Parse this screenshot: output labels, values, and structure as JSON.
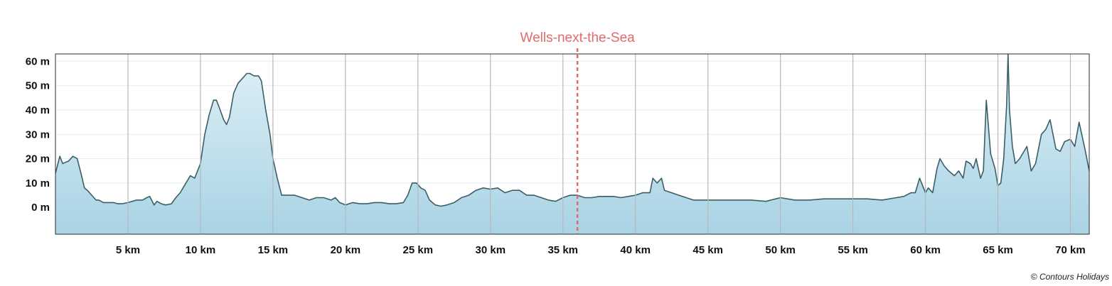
{
  "chart_data": {
    "type": "area",
    "title": "",
    "xlabel": "",
    "ylabel": "",
    "xlim": [
      0,
      71.3
    ],
    "ylim": [
      -11,
      63
    ],
    "x_unit": "km",
    "y_unit": "m",
    "xticks": [
      5,
      10,
      15,
      20,
      25,
      30,
      35,
      40,
      45,
      50,
      55,
      60,
      65,
      70
    ],
    "xtick_labels": [
      "5 km",
      "10 km",
      "15 km",
      "20 km",
      "25 km",
      "30 km",
      "35 km",
      "40 km",
      "45 km",
      "50 km",
      "55 km",
      "60 km",
      "65 km",
      "70 km"
    ],
    "yticks": [
      0,
      10,
      20,
      30,
      40,
      50,
      60
    ],
    "ytick_labels": [
      "0 m",
      "10 m",
      "20 m",
      "30 m",
      "40 m",
      "50 m",
      "60 m"
    ],
    "grid": true,
    "legend": "none",
    "marker": {
      "x": 36.0,
      "label": "Wells-next-the-Sea",
      "color": "#e06b6b"
    },
    "colors": {
      "line": "#3b5f66",
      "fill_top": "#dff0f7",
      "fill_bottom": "#a9d3e4",
      "grid_v": "#b8b8b8",
      "grid_h": "#e3eef4",
      "frame": "#2b2b2b"
    },
    "series": [
      {
        "x": [
          0,
          0.3,
          0.5,
          0.7,
          0.9,
          1.2,
          1.5,
          1.8,
          2.0,
          2.2,
          2.5,
          2.8,
          3.0,
          3.3,
          3.6,
          4.0,
          4.3,
          4.6,
          5.0,
          5.3,
          5.6,
          6.0,
          6.3,
          6.5,
          6.8,
          7.0,
          7.3,
          7.6,
          8.0,
          8.3,
          8.6,
          9.0,
          9.3,
          9.6,
          10.0,
          10.3,
          10.6,
          10.9,
          11.1,
          11.3,
          11.6,
          11.8,
          12.0,
          12.3,
          12.6,
          12.9,
          13.2,
          13.4,
          13.7,
          14.0,
          14.2,
          14.5,
          14.8,
          15.0,
          15.3,
          15.6,
          16.0,
          16.5,
          17.0,
          17.5,
          18.0,
          18.5,
          19.0,
          19.3,
          19.6,
          20.0,
          20.5,
          21.0,
          21.5,
          22.0,
          22.5,
          23.0,
          23.5,
          24.0,
          24.3,
          24.6,
          24.9,
          25.2,
          25.5,
          25.8,
          26.2,
          26.6,
          27.0,
          27.5,
          28.0,
          28.5,
          29.0,
          29.5,
          30.0,
          30.5,
          31.0,
          31.5,
          32.0,
          32.5,
          33.0,
          33.5,
          34.0,
          34.5,
          35.0,
          35.5,
          36.0,
          36.5,
          37.0,
          37.5,
          38.0,
          38.5,
          39.0,
          39.5,
          40.0,
          40.5,
          41.0,
          41.2,
          41.5,
          41.8,
          42.0,
          42.5,
          43.0,
          43.5,
          44.0,
          45.0,
          46.0,
          47.0,
          48.0,
          49.0,
          50.0,
          51.0,
          52.0,
          53.0,
          54.0,
          55.0,
          56.0,
          57.0,
          58.0,
          58.5,
          59.0,
          59.3,
          59.6,
          60.0,
          60.2,
          60.5,
          60.8,
          61.0,
          61.3,
          61.6,
          62.0,
          62.3,
          62.6,
          62.8,
          63.1,
          63.3,
          63.5,
          63.8,
          64.0,
          64.2,
          64.5,
          64.8,
          65.0,
          65.2,
          65.4,
          65.6,
          65.7,
          65.8,
          66.0,
          66.2,
          66.5,
          67.0,
          67.3,
          67.6,
          68.0,
          68.3,
          68.6,
          69.0,
          69.3,
          69.6,
          70.0,
          70.3,
          70.6,
          71.0,
          71.3
        ],
        "y": [
          14,
          21,
          18,
          18.5,
          19,
          21,
          20,
          13,
          8,
          7,
          5,
          3,
          3,
          2,
          2,
          2,
          1.5,
          1.5,
          2,
          2.5,
          3,
          3,
          4,
          4.5,
          1,
          2.5,
          1.5,
          1,
          1.5,
          4,
          6,
          10,
          13,
          12,
          18,
          30,
          38,
          44,
          44,
          41,
          36,
          34,
          37,
          47,
          51,
          53,
          55,
          55,
          54,
          54,
          52,
          40,
          30,
          20,
          12,
          5,
          5,
          5,
          4,
          3,
          4,
          4,
          3,
          4,
          2,
          1,
          2,
          1.5,
          1.5,
          2,
          2,
          1.5,
          1.5,
          2,
          5,
          10,
          10,
          8,
          7,
          3,
          1,
          0.5,
          1,
          2,
          4,
          5,
          7,
          8,
          7.5,
          8,
          6,
          7,
          7,
          5,
          5,
          4,
          3,
          2.5,
          4,
          5,
          5,
          4,
          4,
          4.5,
          4.5,
          4.5,
          4,
          4.5,
          5,
          6,
          6,
          12,
          10,
          12,
          7,
          6,
          5,
          4,
          3,
          3,
          3,
          3,
          3,
          2.5,
          4,
          3,
          3,
          3.5,
          3.5,
          3.5,
          3.5,
          3,
          4,
          4.5,
          6,
          6,
          12,
          6,
          8,
          6,
          16,
          20,
          17,
          15,
          13,
          15,
          12,
          19,
          18,
          16,
          20,
          12,
          15,
          44,
          22,
          16,
          9,
          10,
          20,
          42,
          63,
          40,
          25,
          18,
          20,
          25,
          15,
          18,
          30,
          32,
          36,
          24,
          23,
          27,
          28,
          25,
          35,
          24,
          15
        ]
      }
    ]
  },
  "copyright": "© Contours Holidays"
}
